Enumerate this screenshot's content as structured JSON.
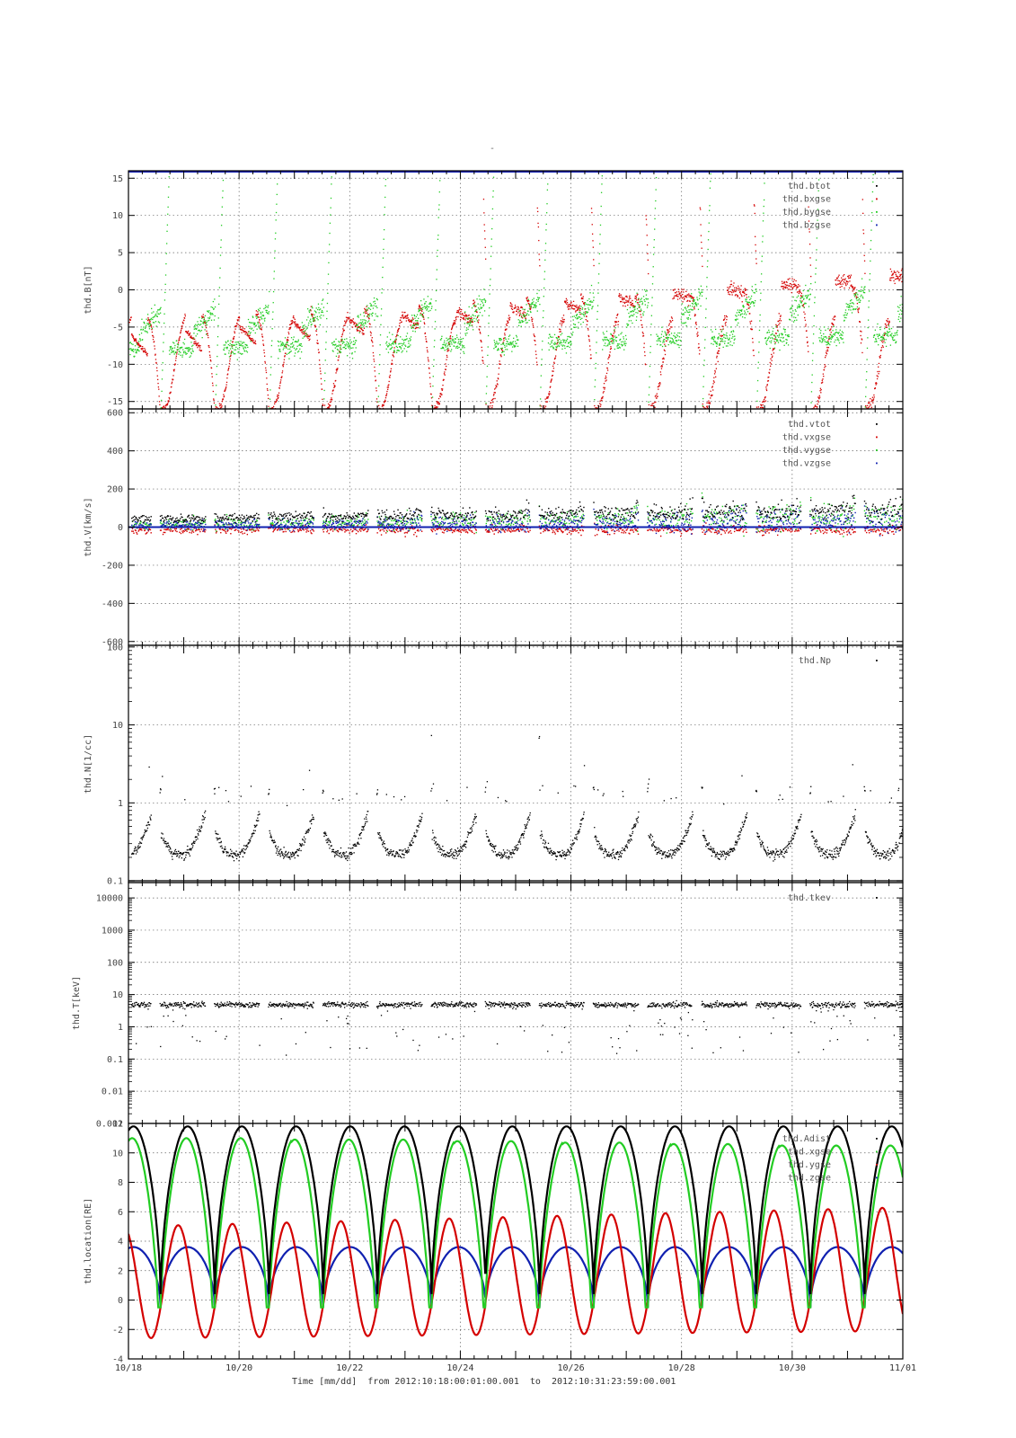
{
  "figure": {
    "title": "-",
    "xlabel": "Time [mm/dd]  from 2012:10:18:00:01:00.001  to  2012:10:31:23:59:00.001",
    "x_tick_labels": [
      "10/18",
      "10/20",
      "10/22",
      "10/24",
      "10/26",
      "10/28",
      "10/30",
      "11/01"
    ],
    "xlim_days": [
      0,
      14
    ]
  },
  "colors": {
    "black": "#000000",
    "red": "#d40000",
    "green": "#22cc22",
    "blue": "#1020b0",
    "grid": "#666666",
    "frame": "#000000"
  },
  "chart_data": [
    {
      "type": "scatter",
      "ylabel": "thd.B[nT]",
      "ylim": [
        -16,
        16
      ],
      "yticks": [
        -15,
        -10,
        -5,
        0,
        5,
        10,
        15
      ],
      "y_tick_labels": [
        "-15",
        "-10",
        "-5",
        "0",
        "5",
        "10",
        "15"
      ],
      "grid": true,
      "legend_position": "top-right",
      "series": [
        {
          "name": "thd.btot",
          "color": "black"
        },
        {
          "name": "thd.bxgse",
          "color": "red"
        },
        {
          "name": "thd.bygse",
          "color": "green"
        },
        {
          "name": "thd.bzgse",
          "color": "blue"
        }
      ]
    },
    {
      "type": "scatter",
      "ylabel": "thd.V[km/s]",
      "ylim": [
        -620,
        620
      ],
      "yticks": [
        -600,
        -400,
        -200,
        0,
        200,
        400,
        600
      ],
      "y_tick_labels": [
        "-600",
        "-400",
        "-200",
        "0",
        "200",
        "400",
        "600"
      ],
      "grid": true,
      "legend_position": "top-right",
      "series": [
        {
          "name": "thd.vtot",
          "color": "black"
        },
        {
          "name": "thd.vxgse",
          "color": "red"
        },
        {
          "name": "thd.vygse",
          "color": "green"
        },
        {
          "name": "thd.vzgse",
          "color": "blue"
        }
      ]
    },
    {
      "type": "scatter",
      "ylabel": "thd.N[1/cc]",
      "yscale": "log",
      "ylim": [
        0.095,
        105
      ],
      "yticks": [
        0.1,
        1,
        10,
        100
      ],
      "y_tick_labels": [
        "0.1",
        "1",
        "10",
        "100"
      ],
      "grid": true,
      "legend_position": "top-right",
      "series": [
        {
          "name": "thd.Np",
          "color": "black"
        }
      ]
    },
    {
      "type": "scatter",
      "ylabel": "thd.T[keV]",
      "yscale": "log",
      "ylim": [
        0.001,
        30000
      ],
      "yticks": [
        0.001,
        0.01,
        0.1,
        1,
        10,
        100,
        1000,
        10000
      ],
      "y_tick_labels": [
        "0.001",
        "0.01",
        "0.1",
        "1",
        "10",
        "100",
        "1000",
        "10000"
      ],
      "grid": true,
      "legend_position": "top-right",
      "series": [
        {
          "name": "thd.tkev",
          "color": "black"
        }
      ]
    },
    {
      "type": "line",
      "ylabel": "thd.location[RE]",
      "ylim": [
        -4,
        12
      ],
      "yticks": [
        -4,
        -2,
        0,
        2,
        4,
        6,
        8,
        10,
        12
      ],
      "y_tick_labels": [
        "-4",
        "-2",
        "0",
        "2",
        "4",
        "6",
        "8",
        "10",
        "12"
      ],
      "grid": true,
      "legend_position": "top-right",
      "orbit": {
        "perigee_days": [
          0.58,
          1.56,
          2.54,
          3.52,
          4.5,
          5.48,
          6.45,
          7.43,
          8.41,
          9.39,
          10.37,
          11.35,
          12.33,
          13.31
        ],
        "dist_peak_RE": 11.8,
        "dist_min_RE": 0.4,
        "x_peak_RE": [
          11.0,
          11.0,
          11.0,
          10.9,
          10.9,
          10.9,
          10.8,
          10.8,
          10.7,
          10.7,
          10.6,
          10.6,
          10.5,
          10.5,
          10.5
        ],
        "y_range_start_RE": [
          5.0,
          -2.6
        ],
        "y_range_end_RE": [
          6.3,
          -2.1
        ],
        "z_peak_RE": 3.6,
        "z_min_RE": -0.5
      },
      "series": [
        {
          "name": "thd.Adist",
          "color": "black"
        },
        {
          "name": "thd.xgse",
          "color": "green"
        },
        {
          "name": "thd.ygse",
          "color": "red"
        },
        {
          "name": "thd.zgse",
          "color": "blue"
        }
      ]
    }
  ]
}
